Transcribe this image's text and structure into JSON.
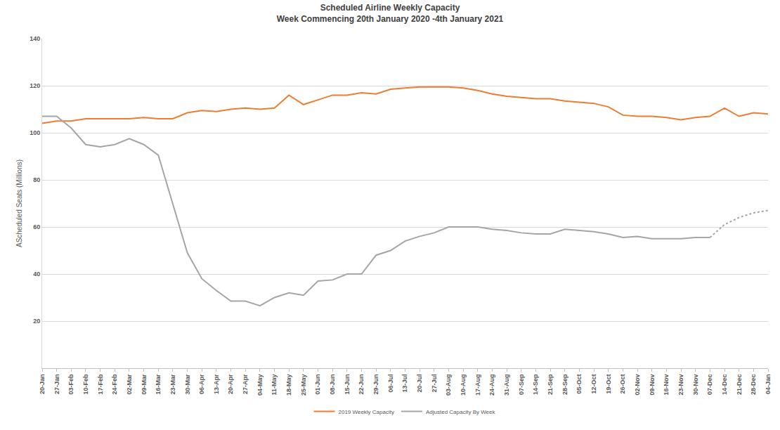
{
  "chart_data": {
    "type": "line",
    "title": "Scheduled Airline Weekly Capacity",
    "subtitle": "Week Commencing 20th January 2020 -4th January 2021",
    "y_label": "AScheduled Seats (Millions)",
    "categories": [
      "20-Jan",
      "27-Jan",
      "03-Feb",
      "10-Feb",
      "17-Feb",
      "24-Feb",
      "02-Mar",
      "09-Mar",
      "16-Mar",
      "23-Mar",
      "30-Mar",
      "06-Apr",
      "13-Apr",
      "20-Apr",
      "27-Apr",
      "04-May",
      "11-May",
      "18-May",
      "25-May",
      "01-Jun",
      "08-Jun",
      "15-Jun",
      "22-Jun",
      "29-Jun",
      "06-Jul",
      "13-Jul",
      "20-Jul",
      "27-Jul",
      "03-Aug",
      "10-Aug",
      "17-Aug",
      "24-Aug",
      "31-Aug",
      "07-Sep",
      "14-Sep",
      "21-Sep",
      "28-Sep",
      "05-Oct",
      "12-Oct",
      "19-Oct",
      "26-Oct",
      "02-Nov",
      "09-Nov",
      "16-Nov",
      "23-Nov",
      "30-Nov",
      "07-Dec",
      "14-Dec",
      "21-Dec",
      "28-Dec",
      "04-Jan"
    ],
    "series": [
      {
        "name": "2019 Weekly Capacity",
        "color": "#ED7D31",
        "line_style": "solid",
        "values": [
          104,
          105,
          105,
          106,
          106,
          106,
          106,
          106.5,
          106,
          106,
          108.5,
          109.5,
          109,
          110,
          110.5,
          110,
          110.5,
          116,
          112,
          114,
          116,
          116,
          117,
          116.5,
          118.5,
          119,
          119.5,
          119.5,
          119.5,
          119,
          118,
          116.5,
          115.5,
          115,
          114.5,
          114.5,
          113.5,
          113,
          112.5,
          111,
          107.5,
          107,
          107,
          106.5,
          105.5,
          106.5,
          107,
          110.5,
          107,
          108.5,
          108
        ]
      },
      {
        "name": "Adjusted Capacity By Week",
        "color": "#A5A5A5",
        "line_style": "solid",
        "values": [
          107,
          107,
          102,
          95,
          94,
          95,
          97.5,
          95,
          90.5,
          70,
          49,
          38,
          33,
          28.5,
          28.5,
          26.5,
          30,
          32,
          31,
          37,
          37.5,
          40,
          40,
          48,
          50,
          54,
          56,
          57.5,
          60,
          60,
          60,
          59,
          58.5,
          57.5,
          57,
          57,
          59,
          58.5,
          58,
          57,
          55.5,
          56,
          55,
          55,
          55,
          55.5,
          55.5,
          null,
          null,
          null,
          null
        ]
      },
      {
        "name": "Adjusted Capacity By Week",
        "color": "#A5A5A5",
        "line_style": "dotted",
        "values": [
          null,
          null,
          null,
          null,
          null,
          null,
          null,
          null,
          null,
          null,
          null,
          null,
          null,
          null,
          null,
          null,
          null,
          null,
          null,
          null,
          null,
          null,
          null,
          null,
          null,
          null,
          null,
          null,
          null,
          null,
          null,
          null,
          null,
          null,
          null,
          null,
          null,
          null,
          null,
          null,
          null,
          null,
          null,
          null,
          null,
          null,
          55.5,
          61,
          64,
          66,
          67
        ]
      }
    ],
    "ylim": [
      0,
      140
    ],
    "yticks": [
      20,
      40,
      60,
      80,
      100,
      120,
      140
    ],
    "grid": true,
    "legend": "bottom"
  }
}
